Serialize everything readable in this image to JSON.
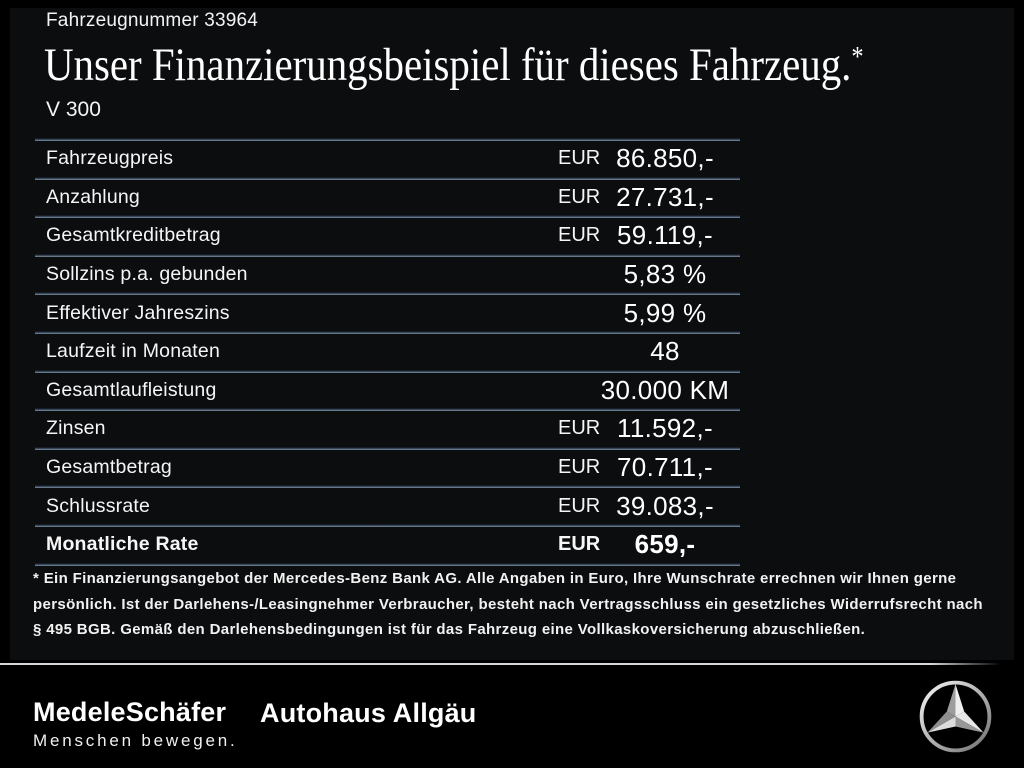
{
  "header": {
    "vehicle_number": "Fahrzeugnummer 33964",
    "title": "Unser Finanzierungsbeispiel für dieses Fahrzeug.",
    "title_asterisk": "*",
    "model": "V 300"
  },
  "table": {
    "rows": [
      {
        "label": "Fahrzeugpreis",
        "currency": "EUR",
        "value": "86.850,-",
        "bold": false
      },
      {
        "label": "Anzahlung",
        "currency": "EUR",
        "value": "27.731,-",
        "bold": false
      },
      {
        "label": "Gesamtkreditbetrag",
        "currency": "EUR",
        "value": "59.119,-",
        "bold": false
      },
      {
        "label": "Sollzins p.a. gebunden",
        "currency": "",
        "value": "5,83 %",
        "bold": false
      },
      {
        "label": "Effektiver Jahreszins",
        "currency": "",
        "value": "5,99 %",
        "bold": false
      },
      {
        "label": "Laufzeit in Monaten",
        "currency": "",
        "value": "48",
        "bold": false
      },
      {
        "label": "Gesamtlaufleistung",
        "currency": "",
        "value": "30.000 KM",
        "bold": false
      },
      {
        "label": "Zinsen",
        "currency": "EUR",
        "value": "11.592,-",
        "bold": false
      },
      {
        "label": "Gesamtbetrag",
        "currency": "EUR",
        "value": "70.711,-",
        "bold": false
      },
      {
        "label": "Schlussrate",
        "currency": "EUR",
        "value": "39.083,-",
        "bold": false
      },
      {
        "label": "Monatliche Rate",
        "currency": "EUR",
        "value": "659,-",
        "bold": true
      }
    ]
  },
  "footnote": "* Ein Finanzierungsangebot der Mercedes-Benz Bank AG. Alle Angaben in Euro, Ihre Wunschrate errechnen wir Ihnen gerne persönlich. Ist der Darlehens-/Leasingnehmer Verbraucher, besteht nach Vertragsschluss ein gesetzliches Widerrufsrecht nach § 495 BGB. Gemäß den Darlehensbedingungen ist für das Fahrzeug eine Vollkaskoversicherung abzuschließen.",
  "footer": {
    "dealer_1": "MedeleSchäfer",
    "tagline": "Menschen bewegen.",
    "dealer_2": "Autohaus Allgäu",
    "brand_icon": "mercedes-star-icon"
  },
  "colors": {
    "background": "#000000",
    "panel": "#0c0d0f",
    "text": "#ffffff",
    "table_divider_blue": "#8292a6",
    "footer_line": "#d6d6d6"
  }
}
